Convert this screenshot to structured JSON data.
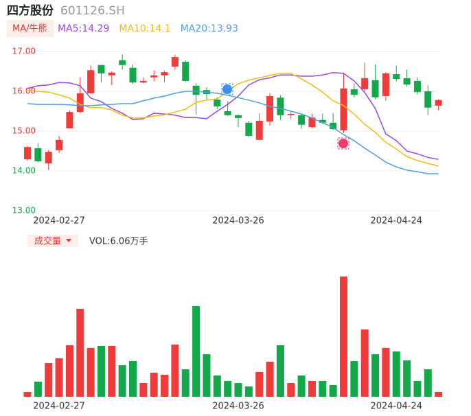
{
  "header": {
    "name": "四方股份",
    "code": "601126.SH"
  },
  "chart_data": [
    {
      "type": "candlestick",
      "toolbar": "MA/牛熊",
      "categories": [
        null,
        null,
        null,
        "2024-02-27",
        null,
        null,
        null,
        null,
        null,
        null,
        null,
        null,
        null,
        null,
        null,
        null,
        null,
        null,
        null,
        null,
        "2024-03-26",
        null,
        null,
        null,
        null,
        null,
        null,
        null,
        null,
        null,
        null,
        null,
        null,
        null,
        null,
        "2024-04-24",
        null,
        null,
        null,
        null
      ],
      "open": [
        14.29,
        14.57,
        14.19,
        14.52,
        15.07,
        15.48,
        15.95,
        16.66,
        16.4,
        16.78,
        16.59,
        16.22,
        16.35,
        16.4,
        16.62,
        16.74,
        16.14,
        16.03,
        15.79,
        15.5,
        15.4,
        15.21,
        14.78,
        15.24,
        15.84,
        15.4,
        15.4,
        15.1,
        15.28,
        15.21,
        15.02,
        16.05,
        16.05,
        16.28,
        15.88,
        16.43,
        16.33,
        16.26,
        16.0,
        15.64
      ],
      "high": [
        14.63,
        14.7,
        14.52,
        14.88,
        15.52,
        16.35,
        16.65,
        16.66,
        16.5,
        16.93,
        16.68,
        16.35,
        16.52,
        16.52,
        16.92,
        16.78,
        16.2,
        16.1,
        15.85,
        15.75,
        15.42,
        15.26,
        15.45,
        15.96,
        15.9,
        15.48,
        15.44,
        15.44,
        15.44,
        15.45,
        16.45,
        16.2,
        16.72,
        16.68,
        16.48,
        16.65,
        16.55,
        16.35,
        16.15,
        15.8
      ],
      "low": [
        14.26,
        14.22,
        14.03,
        14.45,
        15.07,
        15.45,
        15.93,
        16.22,
        16.15,
        16.55,
        16.18,
        16.2,
        16.25,
        16.22,
        16.55,
        16.24,
        15.42,
        15.8,
        15.55,
        15.38,
        15.1,
        14.86,
        14.78,
        15.14,
        15.28,
        15.3,
        15.06,
        15.07,
        15.18,
        15.02,
        14.95,
        15.85,
        16.0,
        15.8,
        15.76,
        16.25,
        16.12,
        15.92,
        15.4,
        15.52
      ],
      "close": [
        14.6,
        14.24,
        14.48,
        14.78,
        15.48,
        15.95,
        16.53,
        16.45,
        16.47,
        16.66,
        16.22,
        16.26,
        16.4,
        16.48,
        16.86,
        16.26,
        15.91,
        15.93,
        15.62,
        15.4,
        15.33,
        14.88,
        15.26,
        15.88,
        15.4,
        15.43,
        15.16,
        15.34,
        15.21,
        15.05,
        16.07,
        15.91,
        16.33,
        15.85,
        16.45,
        16.31,
        16.17,
        15.98,
        15.59,
        15.78
      ],
      "up_color": "#f23b3b",
      "down_color": "#13a84a",
      "ylim": [
        13,
        17
      ],
      "yticks": [
        {
          "value": 17,
          "label": "17.00"
        },
        {
          "value": 16,
          "label": "16.00"
        },
        {
          "value": 15,
          "label": "15.00"
        },
        {
          "value": 14,
          "label": "14.00"
        },
        {
          "value": 13,
          "label": "13.00"
        }
      ],
      "ytick_colors": [
        "#e53935",
        "#e53935",
        "#e53935",
        "#13a84a",
        "#13a84a"
      ],
      "grid": true,
      "series": [
        {
          "name": "MA5:14.29",
          "color": "#9b45e4",
          "values": [
            16.07,
            16.14,
            16.16,
            16.22,
            16.21,
            16.14,
            15.83,
            15.74,
            15.57,
            15.45,
            15.29,
            15.31,
            15.45,
            15.43,
            15.4,
            15.34,
            15.34,
            15.31,
            15.5,
            15.67,
            15.88,
            16.16,
            16.29,
            16.34,
            16.41,
            16.41,
            16.38,
            16.38,
            16.41,
            16.47,
            16.45,
            16.26,
            15.97,
            15.57,
            14.93,
            14.76,
            14.5,
            14.43,
            14.34,
            14.29
          ]
        },
        {
          "name": "MA10:14.1",
          "color": "#f5b90f",
          "values": [
            16.02,
            16.0,
            15.98,
            15.91,
            15.83,
            15.67,
            15.59,
            15.59,
            15.53,
            15.4,
            15.33,
            15.33,
            15.38,
            15.41,
            15.48,
            15.55,
            15.72,
            15.78,
            15.81,
            16.0,
            16.19,
            16.28,
            16.34,
            16.4,
            16.45,
            16.45,
            16.31,
            16.16,
            15.98,
            15.76,
            15.64,
            15.43,
            15.17,
            14.97,
            14.72,
            14.55,
            14.36,
            14.26,
            14.19,
            14.12
          ]
        },
        {
          "name": "MA20:13.93",
          "color": "#4d9de8",
          "values": [
            15.69,
            15.67,
            15.67,
            15.67,
            15.66,
            15.64,
            15.64,
            15.66,
            15.67,
            15.69,
            15.69,
            15.76,
            15.83,
            15.88,
            15.95,
            16.0,
            16.0,
            15.98,
            15.95,
            15.9,
            15.84,
            15.78,
            15.71,
            15.62,
            15.57,
            15.5,
            15.43,
            15.33,
            15.21,
            15.09,
            14.91,
            14.76,
            14.57,
            14.4,
            14.22,
            14.1,
            14.02,
            13.98,
            13.93,
            13.93
          ]
        }
      ]
    },
    {
      "type": "bar",
      "title": "成交量",
      "label": "VOL:6.06万手",
      "values": [
        6.06,
        19.1,
        42.4,
        48.5,
        65.0,
        110.8,
        61.5,
        64.1,
        64.1,
        39.8,
        45.0,
        17.3,
        30.3,
        27.7,
        65.8,
        34.6,
        114.3,
        53.7,
        26.8,
        19.9,
        17.3,
        13.0,
        31.2,
        44.2,
        65.0,
        17.3,
        26.8,
        19.9,
        19.9,
        14.7,
        151.6,
        45.0,
        84.9,
        53.7,
        61.5,
        57.2,
        45.9,
        19.9,
        34.6,
        6.06
      ],
      "ylim": [
        0,
        160
      ]
    }
  ]
}
